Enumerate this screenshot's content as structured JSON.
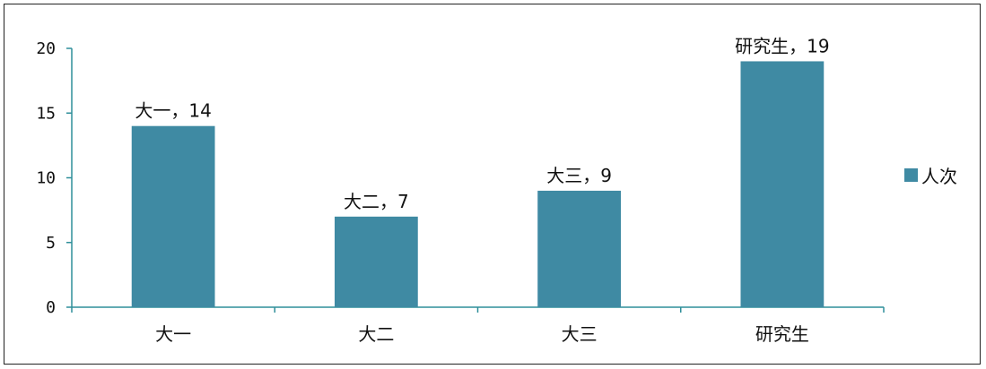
{
  "chart_data": {
    "type": "bar",
    "categories": [
      "大一",
      "大二",
      "大三",
      "研究生"
    ],
    "series": [
      {
        "name": "人次",
        "values": [
          14,
          7,
          9,
          19
        ],
        "color": "#3f8aa3"
      }
    ],
    "data_labels": [
      "大一，14",
      "大二，7",
      "大三，9",
      "研究生，19"
    ],
    "y_ticks": [
      "0",
      "5",
      "10",
      "15",
      "20"
    ],
    "ylim": [
      0,
      20
    ],
    "grid": false,
    "legend_position": "right",
    "axis_color": "#2f8f9a"
  }
}
